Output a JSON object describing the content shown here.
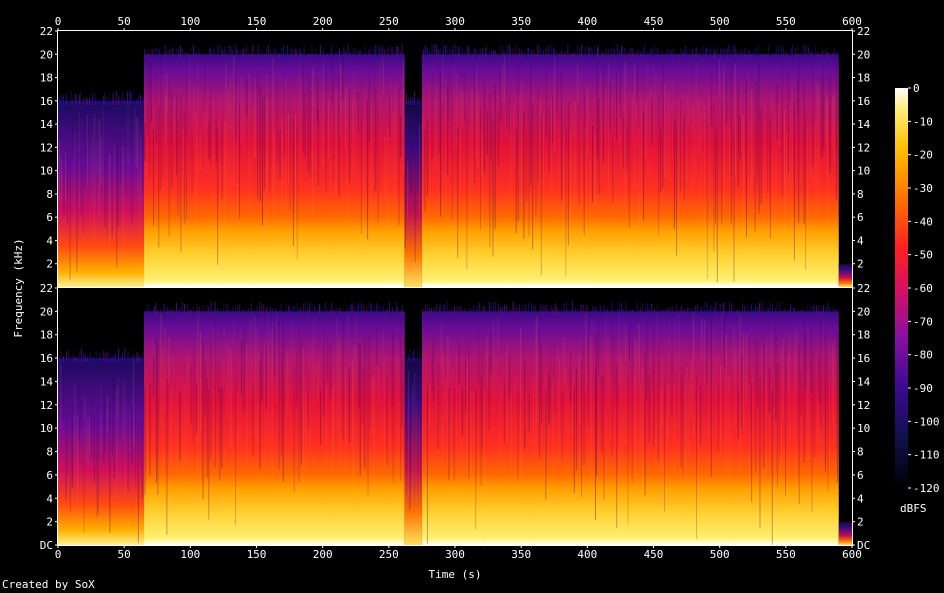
{
  "chart_data": {
    "type": "heatmap",
    "title": "",
    "xlabel": "Time (s)",
    "ylabel": "Frequency (kHz)",
    "xlim": [
      0,
      600
    ],
    "ylim": [
      0,
      22
    ],
    "x_ticks": [
      "0",
      "50",
      "100",
      "150",
      "200",
      "250",
      "300",
      "350",
      "400",
      "450",
      "500",
      "550",
      "600"
    ],
    "y_ticks": [
      "DC",
      "2",
      "4",
      "6",
      "8",
      "10",
      "12",
      "14",
      "16",
      "18",
      "20",
      "22"
    ],
    "channels": 2,
    "colorbar": {
      "label": "dBFS",
      "range": [
        -120,
        0
      ],
      "ticks": [
        "0",
        "-10",
        "-20",
        "-30",
        "-40",
        "-50",
        "-60",
        "-70",
        "-80",
        "-90",
        "-100",
        "-110",
        "-120"
      ]
    },
    "segments": [
      {
        "start": 0,
        "end": 65,
        "bandwidth_khz": 16
      },
      {
        "start": 65,
        "end": 262,
        "bandwidth_khz": 20
      },
      {
        "start": 262,
        "end": 275,
        "bandwidth_khz": 16
      },
      {
        "start": 275,
        "end": 590,
        "bandwidth_khz": 20
      },
      {
        "start": 590,
        "end": 600,
        "bandwidth_khz": 2
      }
    ],
    "colormap": [
      "#000000",
      "#1a0a5c",
      "#4a0a9a",
      "#9a1aa8",
      "#e0203a",
      "#ff5a00",
      "#ffb000",
      "#fff060",
      "#ffffff"
    ]
  },
  "footer": {
    "credit": "Created by SoX"
  }
}
